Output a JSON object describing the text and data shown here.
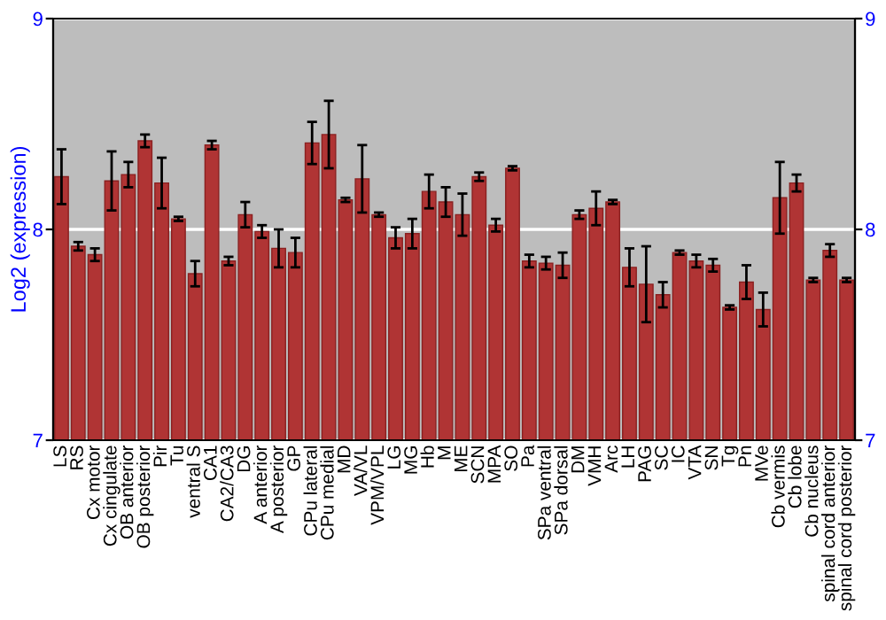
{
  "chart_data": {
    "type": "bar",
    "ylabel": "Log2 (expression)",
    "categories": [
      "LS",
      "RS",
      "Cx motor",
      "Cx cingulate",
      "OB anterior",
      "OB posterior",
      "Pir",
      "Tu",
      "ventral S",
      "CA1",
      "CA2/CA3",
      "DG",
      "A anterior",
      "A posterior",
      "GP",
      "CPu lateral",
      "CPu medial",
      "MD",
      "VA/VL",
      "VPM/VPL",
      "LG",
      "MG",
      "Hb",
      "M",
      "ME",
      "SCN",
      "MPA",
      "SO",
      "Pa",
      "SPa ventral",
      "SPa dorsal",
      "DM",
      "VMH",
      "Arc",
      "LH",
      "PAG",
      "SC",
      "IC",
      "VTA",
      "SN",
      "Tg",
      "Pn",
      "MVe",
      "Cb vermis",
      "Cb lobe",
      "Cb nucleus",
      "spinal cord anterior",
      "spinal cord posterior"
    ],
    "series": [
      {
        "color": "#b03434",
        "values": [
          8.25,
          7.92,
          7.88,
          8.23,
          8.26,
          8.42,
          8.22,
          8.05,
          7.79,
          8.4,
          7.85,
          8.07,
          7.99,
          7.91,
          7.89,
          8.41,
          8.45,
          8.14,
          8.24,
          8.07,
          7.96,
          7.98,
          8.18,
          8.13,
          8.07,
          8.25,
          8.02,
          8.29,
          7.85,
          7.84,
          7.83,
          8.07,
          8.1,
          8.13,
          7.82,
          7.74,
          7.69,
          7.89,
          7.85,
          7.83,
          7.63,
          7.75,
          7.62,
          8.15,
          8.22,
          7.76,
          7.9,
          7.76
        ],
        "errors": [
          0.13,
          0.02,
          0.03,
          0.14,
          0.06,
          0.03,
          0.12,
          0.01,
          0.06,
          0.02,
          0.02,
          0.06,
          0.03,
          0.09,
          0.07,
          0.1,
          0.16,
          0.01,
          0.16,
          0.01,
          0.05,
          0.07,
          0.08,
          0.07,
          0.1,
          0.02,
          0.03,
          0.01,
          0.03,
          0.03,
          0.06,
          0.02,
          0.08,
          0.01,
          0.09,
          0.18,
          0.06,
          0.01,
          0.03,
          0.03,
          0.01,
          0.08,
          0.08,
          0.17,
          0.04,
          0.01,
          0.03,
          0.01
        ]
      }
    ],
    "ylim": [
      7,
      9
    ],
    "yticks": [
      7,
      8,
      9
    ],
    "y2lim": [
      7,
      9
    ],
    "y2ticks": [
      7,
      8,
      9
    ],
    "grid": "y",
    "legend": false
  }
}
